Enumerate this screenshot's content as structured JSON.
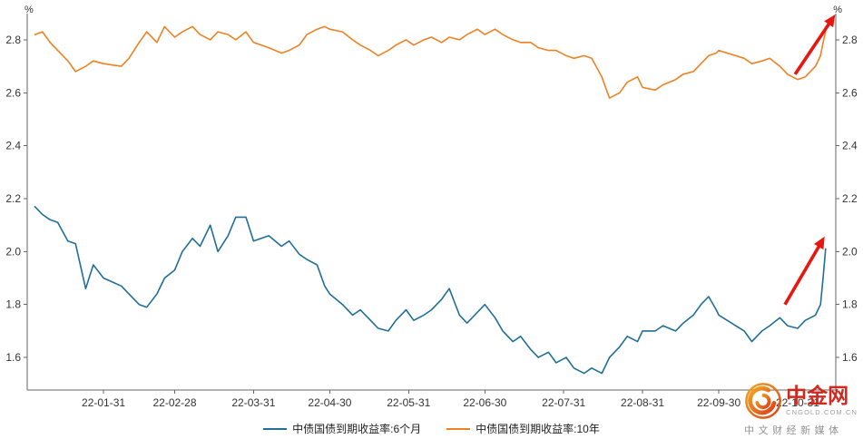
{
  "chart_data": {
    "type": "line",
    "title": "",
    "y_unit": "%",
    "ylim": [
      1.48,
      2.9
    ],
    "yticks": [
      1.6,
      1.8,
      2.0,
      2.2,
      2.4,
      2.6,
      2.8
    ],
    "grid": false,
    "legend_position": "bottom",
    "xtick_labels": [
      "22-01-31",
      "22-02-28",
      "22-03-31",
      "22-04-30",
      "22-05-31",
      "22-06-30",
      "22-07-31",
      "22-08-31",
      "22-09-30",
      "22-10-31"
    ],
    "xtick_dates": [
      "2022-01-31",
      "2022-02-28",
      "2022-03-31",
      "2022-04-30",
      "2022-05-31",
      "2022-06-30",
      "2022-07-31",
      "2022-08-31",
      "2022-09-30",
      "2022-10-31"
    ],
    "x": [
      "2022-01-04",
      "2022-01-07",
      "2022-01-10",
      "2022-01-13",
      "2022-01-17",
      "2022-01-20",
      "2022-01-24",
      "2022-01-27",
      "2022-01-31",
      "2022-02-07",
      "2022-02-10",
      "2022-02-14",
      "2022-02-17",
      "2022-02-21",
      "2022-02-24",
      "2022-02-28",
      "2022-03-03",
      "2022-03-07",
      "2022-03-10",
      "2022-03-14",
      "2022-03-17",
      "2022-03-21",
      "2022-03-24",
      "2022-03-28",
      "2022-03-31",
      "2022-04-06",
      "2022-04-11",
      "2022-04-14",
      "2022-04-18",
      "2022-04-21",
      "2022-04-25",
      "2022-04-28",
      "2022-04-30",
      "2022-05-05",
      "2022-05-09",
      "2022-05-12",
      "2022-05-16",
      "2022-05-19",
      "2022-05-23",
      "2022-05-26",
      "2022-05-30",
      "2022-06-02",
      "2022-06-06",
      "2022-06-09",
      "2022-06-13",
      "2022-06-16",
      "2022-06-20",
      "2022-06-23",
      "2022-06-27",
      "2022-06-30",
      "2022-07-04",
      "2022-07-07",
      "2022-07-11",
      "2022-07-14",
      "2022-07-18",
      "2022-07-21",
      "2022-07-25",
      "2022-07-28",
      "2022-08-01",
      "2022-08-04",
      "2022-08-08",
      "2022-08-11",
      "2022-08-15",
      "2022-08-18",
      "2022-08-22",
      "2022-08-25",
      "2022-08-29",
      "2022-08-31",
      "2022-09-05",
      "2022-09-08",
      "2022-09-13",
      "2022-09-16",
      "2022-09-20",
      "2022-09-23",
      "2022-09-26",
      "2022-09-29",
      "2022-09-30",
      "2022-10-10",
      "2022-10-13",
      "2022-10-17",
      "2022-10-20",
      "2022-10-24",
      "2022-10-27",
      "2022-10-31",
      "2022-11-03",
      "2022-11-07",
      "2022-11-09",
      "2022-11-10",
      "2022-11-11"
    ],
    "series": [
      {
        "name": "中债国债到期收益率:6个月",
        "color": "#1f6f96",
        "values": [
          2.17,
          2.14,
          2.12,
          2.11,
          2.04,
          2.03,
          1.86,
          1.95,
          1.9,
          1.87,
          1.84,
          1.8,
          1.79,
          1.84,
          1.9,
          1.93,
          2.0,
          2.05,
          2.02,
          2.1,
          2.0,
          2.06,
          2.13,
          2.13,
          2.04,
          2.06,
          2.02,
          2.04,
          1.99,
          1.97,
          1.95,
          1.87,
          1.84,
          1.8,
          1.76,
          1.78,
          1.74,
          1.71,
          1.7,
          1.74,
          1.78,
          1.74,
          1.76,
          1.78,
          1.82,
          1.86,
          1.76,
          1.73,
          1.77,
          1.8,
          1.75,
          1.7,
          1.66,
          1.68,
          1.63,
          1.6,
          1.62,
          1.58,
          1.6,
          1.56,
          1.54,
          1.56,
          1.54,
          1.6,
          1.64,
          1.68,
          1.66,
          1.7,
          1.7,
          1.72,
          1.7,
          1.73,
          1.76,
          1.8,
          1.83,
          1.78,
          1.76,
          1.7,
          1.66,
          1.7,
          1.72,
          1.75,
          1.72,
          1.71,
          1.74,
          1.76,
          1.8,
          1.9,
          2.01
        ]
      },
      {
        "name": "中债国债到期收益率:10年",
        "color": "#ef8122",
        "values": [
          2.82,
          2.83,
          2.79,
          2.76,
          2.72,
          2.68,
          2.7,
          2.72,
          2.71,
          2.7,
          2.73,
          2.79,
          2.83,
          2.79,
          2.85,
          2.81,
          2.83,
          2.85,
          2.82,
          2.8,
          2.83,
          2.82,
          2.8,
          2.83,
          2.79,
          2.77,
          2.75,
          2.76,
          2.78,
          2.82,
          2.84,
          2.85,
          2.84,
          2.83,
          2.8,
          2.78,
          2.76,
          2.74,
          2.76,
          2.78,
          2.8,
          2.78,
          2.8,
          2.81,
          2.79,
          2.81,
          2.8,
          2.82,
          2.84,
          2.82,
          2.84,
          2.82,
          2.8,
          2.79,
          2.79,
          2.77,
          2.76,
          2.76,
          2.74,
          2.73,
          2.74,
          2.73,
          2.66,
          2.58,
          2.6,
          2.64,
          2.66,
          2.62,
          2.61,
          2.63,
          2.65,
          2.67,
          2.68,
          2.71,
          2.74,
          2.75,
          2.76,
          2.73,
          2.71,
          2.72,
          2.73,
          2.7,
          2.67,
          2.65,
          2.66,
          2.7,
          2.74,
          2.79,
          2.83
        ]
      }
    ],
    "annotations": [
      {
        "type": "arrow",
        "color": "#e7160f",
        "from": {
          "date": "2022-10-30",
          "value": 2.67
        },
        "to": {
          "date": "2022-11-13",
          "value": 2.87
        }
      },
      {
        "type": "arrow",
        "color": "#e7160f",
        "from": {
          "date": "2022-10-26",
          "value": 1.8
        },
        "to": {
          "date": "2022-11-09",
          "value": 2.03
        }
      }
    ]
  },
  "watermark": {
    "brand": "中金网",
    "domain": "CNGOLD.COM.CN",
    "tagline": "中文财经新媒体"
  }
}
